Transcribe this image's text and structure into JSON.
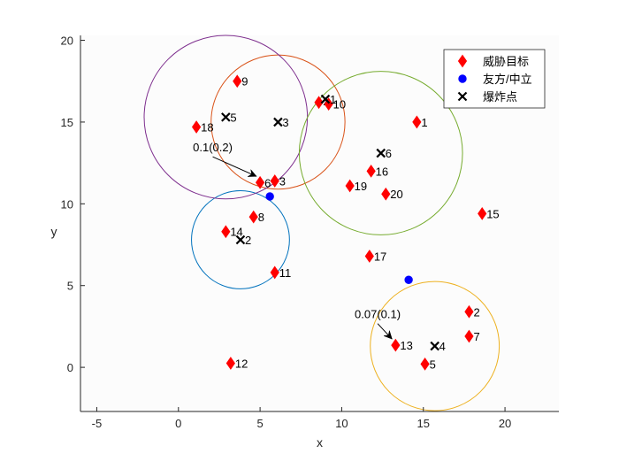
{
  "chart_data": {
    "type": "scatter",
    "xlabel": "x",
    "ylabel": "y",
    "xlim": [
      -6,
      23.3
    ],
    "ylim": [
      -2.7,
      20.3
    ],
    "xticks": [
      -5,
      0,
      5,
      10,
      15,
      20
    ],
    "yticks": [
      0,
      5,
      10,
      15,
      20
    ],
    "grid": false,
    "legend_position": "top-right",
    "legend": [
      {
        "label": "威胁目标",
        "marker": "diamond",
        "color": "#ff0000"
      },
      {
        "label": "友方/中立",
        "marker": "circle",
        "color": "#0000ff"
      },
      {
        "label": "爆炸点",
        "marker": "x",
        "color": "#000000"
      }
    ],
    "threat_targets": [
      {
        "label": "1",
        "x": 14.6,
        "y": 15.0
      },
      {
        "label": "2",
        "x": 17.8,
        "y": 3.4
      },
      {
        "label": "3",
        "x": 5.9,
        "y": 11.4
      },
      {
        "label": "4",
        "x": 8.6,
        "y": 16.2
      },
      {
        "label": "5",
        "x": 15.1,
        "y": 0.2
      },
      {
        "label": "6",
        "x": 5.0,
        "y": 11.3
      },
      {
        "label": "7",
        "x": 17.8,
        "y": 1.9
      },
      {
        "label": "8",
        "x": 4.6,
        "y": 9.2
      },
      {
        "label": "9",
        "x": 3.6,
        "y": 17.5
      },
      {
        "label": "10",
        "x": 9.2,
        "y": 16.1
      },
      {
        "label": "11",
        "x": 5.9,
        "y": 5.8
      },
      {
        "label": "12",
        "x": 3.2,
        "y": 0.25
      },
      {
        "label": "13",
        "x": 13.3,
        "y": 1.35
      },
      {
        "label": "14",
        "x": 2.9,
        "y": 8.3
      },
      {
        "label": "15",
        "x": 18.6,
        "y": 9.4
      },
      {
        "label": "16",
        "x": 11.8,
        "y": 12.0
      },
      {
        "label": "17",
        "x": 11.7,
        "y": 6.8
      },
      {
        "label": "18",
        "x": 1.1,
        "y": 14.7
      },
      {
        "label": "19",
        "x": 10.5,
        "y": 11.1
      },
      {
        "label": "20",
        "x": 12.7,
        "y": 10.6
      }
    ],
    "friendly_neutral": [
      {
        "x": 5.6,
        "y": 10.45
      },
      {
        "x": 14.1,
        "y": 5.35
      }
    ],
    "blast_points": [
      {
        "label": "1",
        "x": 9.0,
        "y": 16.4,
        "radius": 0
      },
      {
        "label": "2",
        "x": 3.8,
        "y": 7.8,
        "radius": 3.0
      },
      {
        "label": "3",
        "x": 6.1,
        "y": 15.0,
        "radius": 4.1
      },
      {
        "label": "4",
        "x": 15.7,
        "y": 1.3,
        "radius": 3.95
      },
      {
        "label": "5",
        "x": 2.9,
        "y": 15.3,
        "radius": 5.0
      },
      {
        "label": "6",
        "x": 12.4,
        "y": 13.1,
        "radius": 5.0
      }
    ],
    "circle_colors": {
      "2": "#0072bd",
      "3": "#d95319",
      "4": "#edb120",
      "5": "#7e2f8e",
      "6": "#77ac30"
    },
    "annotations": [
      {
        "text": "0.1(0.2)",
        "x": 2.1,
        "y": 13.2,
        "target_x": 5.0,
        "target_y": 11.3
      },
      {
        "text": "0.07(0.1)",
        "x": 12.2,
        "y": 3.0,
        "target_x": 13.3,
        "target_y": 1.35
      }
    ]
  }
}
